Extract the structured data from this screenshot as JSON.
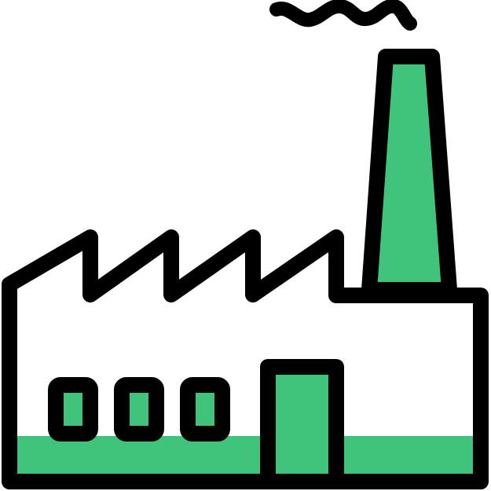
{
  "icon": {
    "name": "factory-icon"
  },
  "colors": {
    "outline": "#000000",
    "fill_accent": "#40c37a",
    "background": "#ffffff"
  }
}
